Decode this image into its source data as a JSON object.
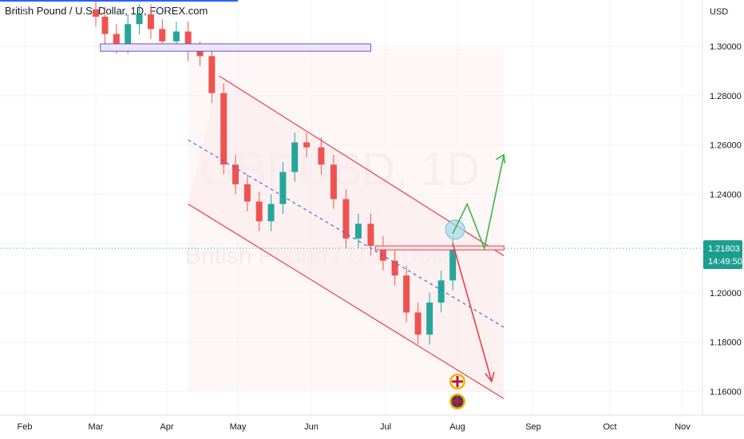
{
  "header": {
    "symbol_title": "British Pound / U.S. Dollar, 1D, FOREX.com"
  },
  "watermark": {
    "ticker": "GBPUSD, 1D",
    "description": "British Pound / U.S. Dollar"
  },
  "price_scale": {
    "currency": "USD",
    "current_price": "1.21803",
    "countdown": "14:49:50"
  },
  "colors": {
    "up": "#26a69a",
    "down": "#ef5350",
    "channel": "#e8404d",
    "midline": "#3f6fe0",
    "green_arrow": "#3cb64a",
    "red_arrow": "#e8404d",
    "price_label_bg": "#1a9e8f",
    "resistance_zone": "#6a4fd0",
    "top_line": "#2962ff"
  },
  "events": [
    {
      "icon": "gb-flag-event-icon"
    },
    {
      "icon": "us-flag-event-icon"
    }
  ],
  "chart_data": {
    "type": "candlestick",
    "symbol": "British Pound / U.S. Dollar",
    "interval": "1D",
    "broker": "FOREX.com",
    "x_ticks": [
      "Feb",
      "Mar",
      "Apr",
      "May",
      "Jun",
      "Jul",
      "Aug",
      "Sep",
      "Oct",
      "Nov"
    ],
    "y_ticks": [
      "1.30000",
      "1.28000",
      "1.26000",
      "1.24000",
      "1.22000",
      "1.20000",
      "1.18000",
      "1.16000"
    ],
    "ylim": [
      1.152,
      1.318
    ],
    "last_price": 1.21803,
    "dates": [
      "2022-03-01",
      "2022-03-05",
      "2022-03-10",
      "2022-03-15",
      "2022-03-20",
      "2022-03-25",
      "2022-03-30",
      "2022-04-05",
      "2022-04-10",
      "2022-04-15",
      "2022-04-20",
      "2022-04-25",
      "2022-04-30",
      "2022-05-05",
      "2022-05-10",
      "2022-05-15",
      "2022-05-20",
      "2022-05-25",
      "2022-05-30",
      "2022-06-05",
      "2022-06-10",
      "2022-06-15",
      "2022-06-20",
      "2022-06-25",
      "2022-06-30",
      "2022-07-05",
      "2022-07-10",
      "2022-07-15",
      "2022-07-20",
      "2022-07-25",
      "2022-07-30"
    ],
    "close": [
      1.312,
      1.305,
      1.301,
      1.309,
      1.313,
      1.307,
      1.302,
      1.306,
      1.298,
      1.296,
      1.281,
      1.252,
      1.244,
      1.237,
      1.229,
      1.236,
      1.249,
      1.261,
      1.259,
      1.252,
      1.238,
      1.222,
      1.228,
      1.219,
      1.213,
      1.207,
      1.192,
      1.183,
      1.196,
      1.205,
      1.218
    ],
    "annotations": {
      "descending_channel_upper": [
        [
          "2022-04-23",
          1.288
        ],
        [
          "2022-08-20",
          1.215
        ]
      ],
      "descending_channel_lower": [
        [
          "2022-04-10",
          1.236
        ],
        [
          "2022-08-20",
          1.157
        ]
      ],
      "channel_midline": [
        [
          "2022-04-10",
          1.262
        ],
        [
          "2022-08-20",
          1.186
        ]
      ],
      "resistance_zone": {
        "from": "2022-03-03",
        "to": "2022-06-25",
        "y1": 1.301,
        "y2": 1.298
      },
      "breakout_level": {
        "from": "2022-06-27",
        "to": "2022-08-20",
        "y1": 1.219,
        "y2": 1.2175
      },
      "bullish_path": [
        [
          "2022-07-30",
          1.224
        ],
        [
          "2022-08-05",
          1.236
        ],
        [
          "2022-08-12",
          1.218
        ],
        [
          "2022-08-20",
          1.256
        ]
      ],
      "bearish_path": [
        [
          "2022-07-30",
          1.22
        ],
        [
          "2022-08-15",
          1.164
        ]
      ],
      "breakout_circle": [
        "2022-07-31",
        1.224
      ]
    }
  }
}
